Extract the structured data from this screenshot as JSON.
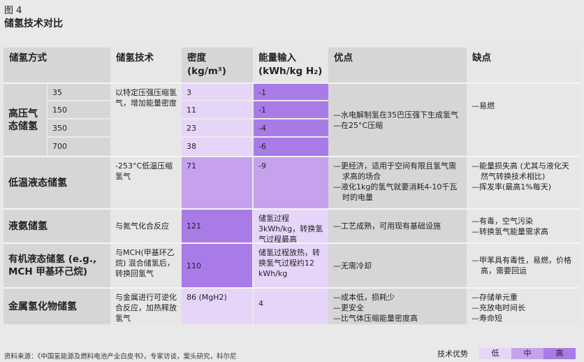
{
  "figure_label": "图 4",
  "title": "储氢技术对比",
  "headers": {
    "method": "储氢方式",
    "tech": "储氢技术",
    "density": "密度 (kg/m³)",
    "energy_1": "能量输入",
    "energy_2": "(kWh/kg H₂)",
    "pros": "优点",
    "cons": "缺点"
  },
  "high_pressure": {
    "name": "高压气态储氢",
    "tech": "以特定压强压缩氢气，增加能量密度",
    "rows": [
      {
        "pressure": "35",
        "density": "3",
        "energy": "-1"
      },
      {
        "pressure": "150",
        "density": "11",
        "energy": "-1"
      },
      {
        "pressure": "350",
        "density": "23",
        "energy": "-4"
      },
      {
        "pressure": "700",
        "density": "38",
        "energy": "-6"
      }
    ],
    "density_level": "low",
    "energy_level": "high",
    "pros": [
      "水电解制氢在35巴压强下生成氢气",
      "在25°C压缩"
    ],
    "cons": [
      "易燃"
    ]
  },
  "rows": [
    {
      "name": "低温液态储氢",
      "tech": "-253°C低温压缩氢气",
      "density": "71",
      "energy": "-9",
      "density_level": "mid",
      "energy_level": "mid",
      "pros": [
        "更经济，适用于空间有限且氢气需求高的场合",
        "液化1kg的氢气就要消耗4-10千瓦时的电量"
      ],
      "cons": [
        "能量损失高 (尤其与液化天然气转换技术相比)",
        "挥发率(最高1%每天)"
      ]
    },
    {
      "name": "液氨储氢",
      "tech": "与氮气化合反应",
      "density": "121",
      "energy": "储氢过程3kWh/kg，转换氢气过程最高8kWh/kg",
      "density_level": "high",
      "energy_level": "low",
      "pros": [
        "工艺成熟，可用现有基础设施"
      ],
      "cons": [
        "有毒，空气污染",
        "转换氢气能量需求高"
      ]
    },
    {
      "name": "有机液态储氢 (e.g., MCH 甲基环己烷)",
      "tech": "与MCH(甲基环乙烷) 混合储氢后，转换回氢气",
      "density": "110",
      "energy": "储氢过程放热，转换氢气过程约12 kWh/kg",
      "density_level": "high",
      "energy_level": "low",
      "pros": [
        "无需冷却"
      ],
      "cons": [
        "甲苯具有毒性，易燃，价格高，需要回运"
      ]
    },
    {
      "name": "金属氢化物储氢",
      "tech": "与金属进行可逆化合反应，加热释放氢气",
      "density": "86 (MgH2)",
      "energy": "4",
      "density_level": "low",
      "energy_level": "low",
      "pros": [
        "成本低，损耗少",
        "更安全",
        "比气体压缩能量密度高"
      ],
      "cons": [
        "存储单元重",
        "充放电时间长",
        "寿命短"
      ]
    }
  ],
  "source": "资料来源：《中国氢能源及燃料电池产业白皮书》，专家访谈，案头研究，科尔尼",
  "legend": {
    "label": "技术优势",
    "low": "低",
    "mid": "中",
    "high": "高"
  },
  "colors": {
    "low": "#e7d5f9",
    "mid": "#c6a2ee",
    "high": "#a97be7"
  }
}
